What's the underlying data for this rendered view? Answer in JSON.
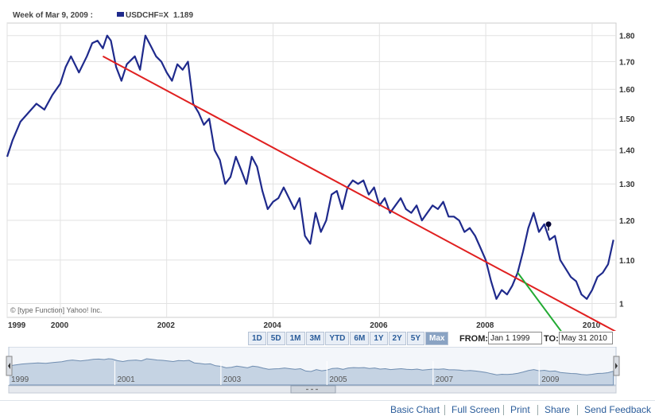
{
  "header": {
    "week_label": "Week of Mar 9, 2009 :",
    "series_label": "USDCHF=X",
    "series_value": "1.189"
  },
  "copyright": "© [type Function] Yahoo! Inc.",
  "colors": {
    "series": "#1f2a8c",
    "trend_red": "#e02020",
    "trend_green": "#22aa33",
    "navigator_fill": "#c5d3e3",
    "accent": "#2a5c9a"
  },
  "chart_data": {
    "type": "line",
    "title": "",
    "xlabel": "",
    "ylabel": "",
    "series_name": "USDCHF=X",
    "xlim": [
      1999.0,
      2010.45
    ],
    "ylim": [
      0.97,
      1.85
    ],
    "y_scale": "log",
    "grid": true,
    "y_ticks": [
      "1.80",
      "1.70",
      "1.60",
      "1.50",
      "1.40",
      "1.30",
      "1.20",
      "1.10",
      "1"
    ],
    "y_tick_values": [
      1.8,
      1.7,
      1.6,
      1.5,
      1.4,
      1.3,
      1.2,
      1.1,
      1.0
    ],
    "x_ticks": [
      "1999",
      "2000",
      "2002",
      "2004",
      "2006",
      "2008",
      "2010"
    ],
    "x_tick_values": [
      1999,
      2000,
      2002,
      2004,
      2006,
      2008,
      2010
    ],
    "series": [
      {
        "name": "USDCHF=X",
        "x": [
          1999.0,
          1999.1,
          1999.25,
          1999.4,
          1999.55,
          1999.7,
          1999.85,
          2000.0,
          2000.1,
          2000.2,
          2000.35,
          2000.5,
          2000.6,
          2000.7,
          2000.8,
          2000.88,
          2000.95,
          2001.05,
          2001.15,
          2001.25,
          2001.4,
          2001.5,
          2001.6,
          2001.7,
          2001.8,
          2001.9,
          2002.0,
          2002.1,
          2002.2,
          2002.3,
          2002.4,
          2002.5,
          2002.6,
          2002.7,
          2002.8,
          2002.9,
          2003.0,
          2003.1,
          2003.2,
          2003.3,
          2003.4,
          2003.5,
          2003.6,
          2003.7,
          2003.8,
          2003.9,
          2004.0,
          2004.1,
          2004.2,
          2004.3,
          2004.4,
          2004.5,
          2004.6,
          2004.7,
          2004.8,
          2004.9,
          2005.0,
          2005.1,
          2005.2,
          2005.3,
          2005.4,
          2005.5,
          2005.6,
          2005.7,
          2005.8,
          2005.9,
          2006.0,
          2006.1,
          2006.2,
          2006.3,
          2006.4,
          2006.5,
          2006.6,
          2006.7,
          2006.8,
          2006.9,
          2007.0,
          2007.1,
          2007.2,
          2007.3,
          2007.4,
          2007.5,
          2007.6,
          2007.7,
          2007.8,
          2007.9,
          2008.0,
          2008.1,
          2008.2,
          2008.3,
          2008.4,
          2008.5,
          2008.6,
          2008.7,
          2008.8,
          2008.9,
          2009.0,
          2009.1,
          2009.2,
          2009.3,
          2009.4,
          2009.5,
          2009.6,
          2009.7,
          2009.8,
          2009.9,
          2010.0,
          2010.1,
          2010.2,
          2010.3,
          2010.4
        ],
        "y": [
          1.38,
          1.43,
          1.49,
          1.52,
          1.55,
          1.53,
          1.58,
          1.62,
          1.68,
          1.72,
          1.66,
          1.72,
          1.77,
          1.78,
          1.75,
          1.8,
          1.78,
          1.68,
          1.63,
          1.69,
          1.72,
          1.67,
          1.8,
          1.76,
          1.72,
          1.7,
          1.66,
          1.63,
          1.69,
          1.67,
          1.7,
          1.55,
          1.52,
          1.48,
          1.5,
          1.4,
          1.37,
          1.3,
          1.32,
          1.38,
          1.34,
          1.3,
          1.38,
          1.35,
          1.28,
          1.23,
          1.25,
          1.26,
          1.29,
          1.26,
          1.23,
          1.26,
          1.16,
          1.14,
          1.22,
          1.17,
          1.2,
          1.27,
          1.28,
          1.23,
          1.29,
          1.31,
          1.3,
          1.31,
          1.27,
          1.29,
          1.24,
          1.26,
          1.22,
          1.24,
          1.26,
          1.23,
          1.22,
          1.24,
          1.2,
          1.22,
          1.24,
          1.23,
          1.25,
          1.21,
          1.21,
          1.2,
          1.17,
          1.18,
          1.16,
          1.13,
          1.1,
          1.05,
          1.01,
          1.03,
          1.02,
          1.04,
          1.07,
          1.12,
          1.18,
          1.22,
          1.17,
          1.19,
          1.15,
          1.16,
          1.1,
          1.08,
          1.06,
          1.05,
          1.02,
          1.01,
          1.03,
          1.06,
          1.07,
          1.09,
          1.15
        ]
      }
    ],
    "trendlines": [
      {
        "color": "red",
        "x": [
          2000.8,
          2010.45
        ],
        "y": [
          1.72,
          0.94
        ]
      },
      {
        "color": "green",
        "x": [
          2008.6,
          2010.45
        ],
        "y": [
          1.07,
          0.8
        ]
      }
    ],
    "marker": {
      "x": 2009.18,
      "y": 1.19
    },
    "navigator_labels": [
      "1999",
      "2001",
      "2003",
      "2005",
      "2007",
      "2009"
    ],
    "navigator_values": [
      1999,
      2001,
      2003,
      2005,
      2007,
      2009
    ]
  },
  "range_buttons": [
    "1D",
    "5D",
    "1M",
    "3M",
    "YTD",
    "6M",
    "1Y",
    "2Y",
    "5Y",
    "Max"
  ],
  "active_range": "Max",
  "from_label": "FROM:",
  "from_value": "Jan 1 1999",
  "to_label": "TO:",
  "to_value": "May 31 2010",
  "footer_links": [
    "Basic Chart",
    "Full Screen",
    "Print",
    "Share",
    "Send Feedback"
  ]
}
